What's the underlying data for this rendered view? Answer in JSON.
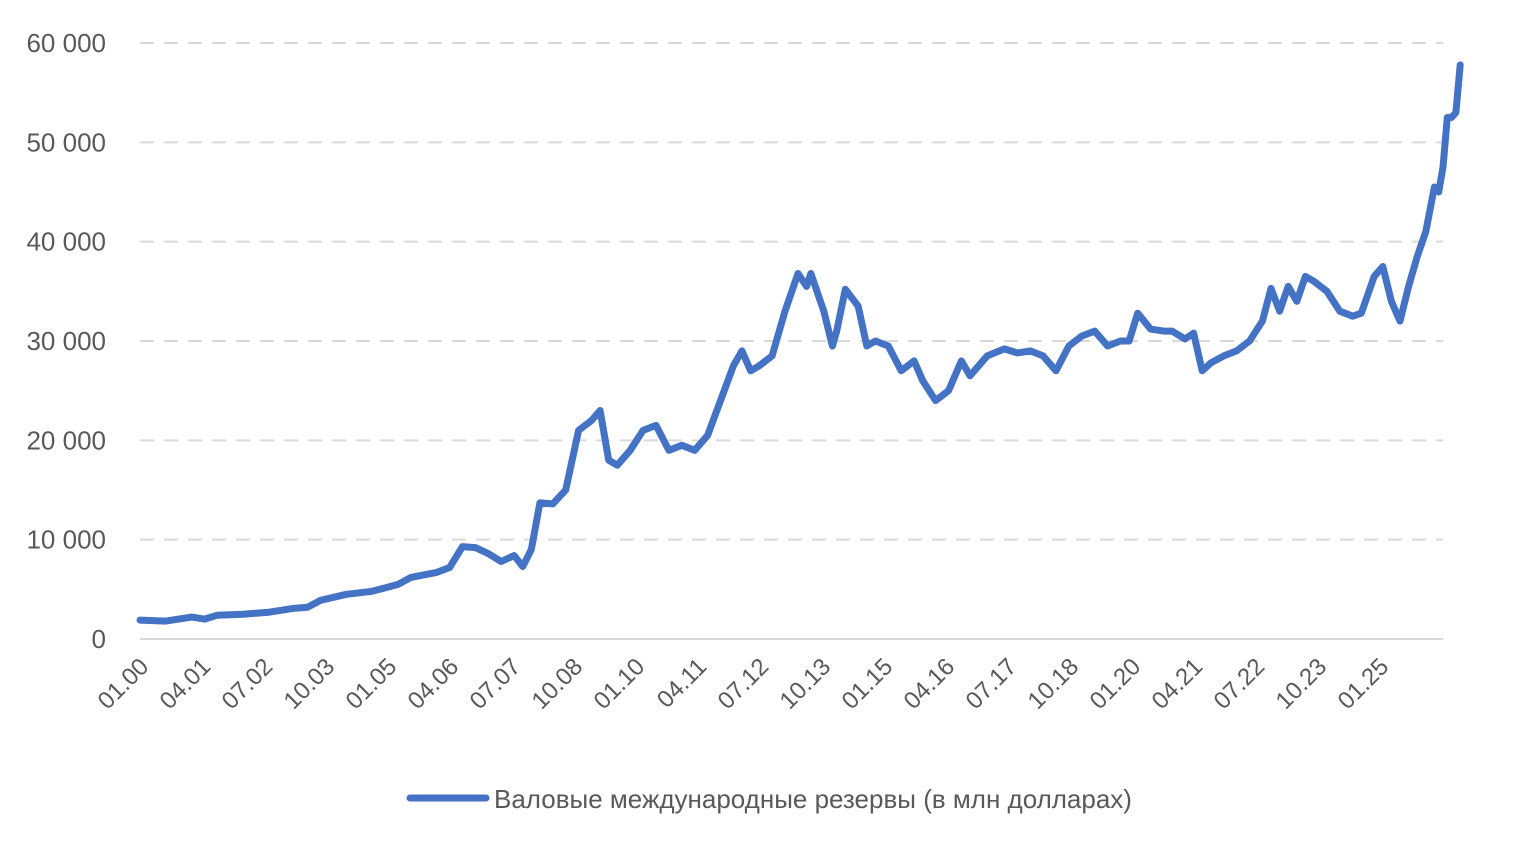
{
  "chart_data": {
    "type": "line",
    "title": "",
    "xlabel": "",
    "ylabel": "",
    "ylim": [
      0,
      60000
    ],
    "yticks": [
      0,
      10000,
      20000,
      30000,
      40000,
      50000,
      60000
    ],
    "ytick_labels": [
      "0",
      "10 000",
      "20 000",
      "30 000",
      "40 000",
      "50 000",
      "60 000"
    ],
    "xtick_labels": [
      "01.00",
      "04.01",
      "07.02",
      "10.03",
      "01.05",
      "04.06",
      "07.07",
      "10.08",
      "01.10",
      "04.11",
      "07.12",
      "10.13",
      "01.15",
      "04.16",
      "07.17",
      "10.18",
      "01.20",
      "04.21",
      "07.22",
      "10.23",
      "01.25"
    ],
    "x_range": [
      "2000-01",
      "2025-04"
    ],
    "grid": true,
    "legend_position": "bottom",
    "color": "#4472c4",
    "series": [
      {
        "name": "Валовые международные резервы (в млн долларах)",
        "points": [
          [
            "2000-01",
            1900
          ],
          [
            "2000-07",
            1800
          ],
          [
            "2001-01",
            2200
          ],
          [
            "2001-04",
            2000
          ],
          [
            "2001-07",
            2400
          ],
          [
            "2002-01",
            2500
          ],
          [
            "2002-07",
            2700
          ],
          [
            "2003-01",
            3100
          ],
          [
            "2003-04",
            3200
          ],
          [
            "2003-07",
            3900
          ],
          [
            "2004-01",
            4500
          ],
          [
            "2004-07",
            4800
          ],
          [
            "2005-01",
            5500
          ],
          [
            "2005-04",
            6200
          ],
          [
            "2005-10",
            6700
          ],
          [
            "2006-01",
            7200
          ],
          [
            "2006-04",
            9300
          ],
          [
            "2006-07",
            9200
          ],
          [
            "2006-10",
            8600
          ],
          [
            "2007-01",
            7800
          ],
          [
            "2007-04",
            8400
          ],
          [
            "2007-06",
            7300
          ],
          [
            "2007-08",
            9000
          ],
          [
            "2007-10",
            13700
          ],
          [
            "2008-01",
            13600
          ],
          [
            "2008-04",
            15000
          ],
          [
            "2008-07",
            21000
          ],
          [
            "2008-10",
            22000
          ],
          [
            "2008-12",
            23000
          ],
          [
            "2009-02",
            18000
          ],
          [
            "2009-04",
            17500
          ],
          [
            "2009-07",
            19000
          ],
          [
            "2009-10",
            21000
          ],
          [
            "2010-01",
            21500
          ],
          [
            "2010-04",
            19000
          ],
          [
            "2010-07",
            19500
          ],
          [
            "2010-10",
            19000
          ],
          [
            "2011-01",
            20500
          ],
          [
            "2011-04",
            24000
          ],
          [
            "2011-07",
            27500
          ],
          [
            "2011-09",
            29000
          ],
          [
            "2011-11",
            27000
          ],
          [
            "2012-01",
            27500
          ],
          [
            "2012-04",
            28500
          ],
          [
            "2012-07",
            33000
          ],
          [
            "2012-10",
            36800
          ],
          [
            "2012-12",
            35500
          ],
          [
            "2013-01",
            36800
          ],
          [
            "2013-04",
            33000
          ],
          [
            "2013-06",
            29500
          ],
          [
            "2013-07",
            31000
          ],
          [
            "2013-09",
            35200
          ],
          [
            "2013-12",
            33500
          ],
          [
            "2014-02",
            29500
          ],
          [
            "2014-04",
            30000
          ],
          [
            "2014-07",
            29500
          ],
          [
            "2014-10",
            27000
          ],
          [
            "2015-01",
            28000
          ],
          [
            "2015-03",
            26000
          ],
          [
            "2015-06",
            24000
          ],
          [
            "2015-09",
            25000
          ],
          [
            "2015-12",
            28000
          ],
          [
            "2016-02",
            26500
          ],
          [
            "2016-06",
            28500
          ],
          [
            "2016-10",
            29200
          ],
          [
            "2017-01",
            28800
          ],
          [
            "2017-04",
            29000
          ],
          [
            "2017-07",
            28500
          ],
          [
            "2017-10",
            27000
          ],
          [
            "2018-01",
            29500
          ],
          [
            "2018-04",
            30500
          ],
          [
            "2018-07",
            31000
          ],
          [
            "2018-10",
            29500
          ],
          [
            "2019-01",
            30000
          ],
          [
            "2019-03",
            30000
          ],
          [
            "2019-05",
            32800
          ],
          [
            "2019-08",
            31200
          ],
          [
            "2019-11",
            31000
          ],
          [
            "2020-01",
            31000
          ],
          [
            "2020-04",
            30200
          ],
          [
            "2020-06",
            30800
          ],
          [
            "2020-08",
            27000
          ],
          [
            "2020-10",
            27800
          ],
          [
            "2021-01",
            28500
          ],
          [
            "2021-04",
            29000
          ],
          [
            "2021-07",
            30000
          ],
          [
            "2021-10",
            32000
          ],
          [
            "2021-12",
            35300
          ],
          [
            "2022-02",
            33000
          ],
          [
            "2022-04",
            35500
          ],
          [
            "2022-06",
            34000
          ],
          [
            "2022-08",
            36500
          ],
          [
            "2022-10",
            36000
          ],
          [
            "2023-01",
            35000
          ],
          [
            "2023-04",
            33000
          ],
          [
            "2023-07",
            32500
          ],
          [
            "2023-09",
            32800
          ],
          [
            "2023-12",
            36500
          ],
          [
            "2024-02",
            37500
          ],
          [
            "2024-04",
            34000
          ],
          [
            "2024-06",
            32000
          ],
          [
            "2024-08",
            35500
          ],
          [
            "2024-10",
            38500
          ],
          [
            "2024-12",
            41000
          ],
          [
            "2025-02",
            45500
          ],
          [
            "2025-03",
            45000
          ],
          [
            "2025-04",
            47500
          ],
          [
            "2025-05",
            52500
          ],
          [
            "2025-06",
            52500
          ],
          [
            "2025-07",
            53000
          ],
          [
            "2025-08",
            57800
          ]
        ]
      }
    ]
  }
}
